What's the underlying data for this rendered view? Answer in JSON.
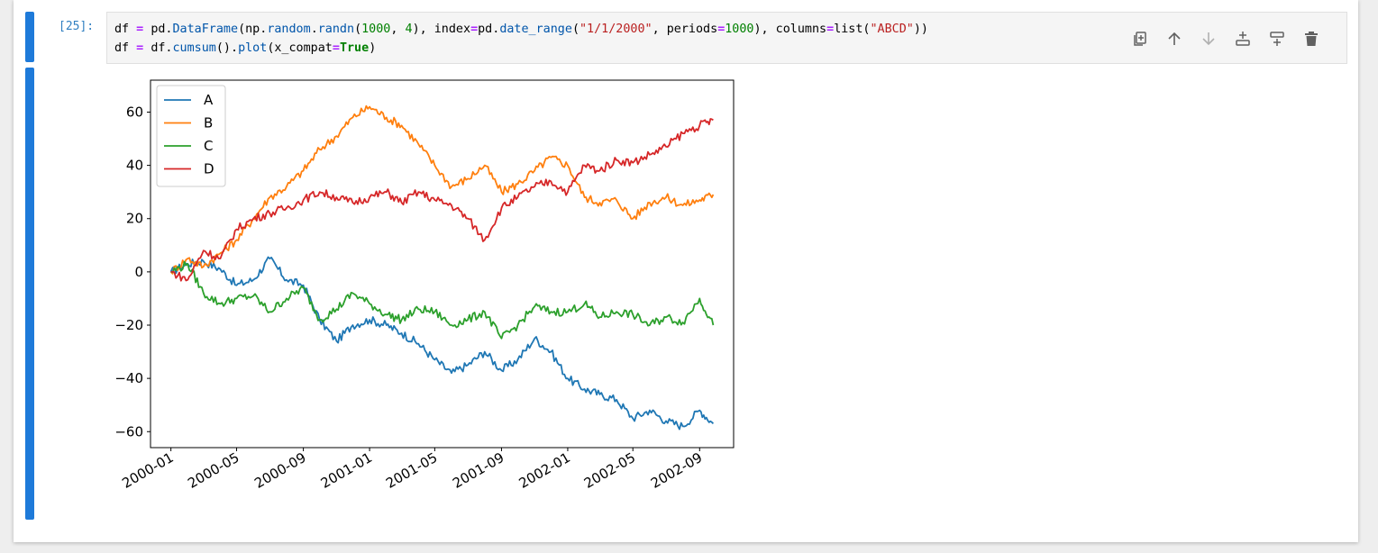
{
  "cell": {
    "prompt": "[25]:",
    "code_lines": [
      [
        {
          "t": "df",
          "c": "k-name"
        },
        {
          "t": " = ",
          "c": "k-eq"
        },
        {
          "t": "pd.",
          "c": "k-name"
        },
        {
          "t": "DataFrame",
          "c": "k-attr"
        },
        {
          "t": "(np.",
          "c": "k-name"
        },
        {
          "t": "random",
          "c": "k-attr"
        },
        {
          "t": ".",
          "c": "k-name"
        },
        {
          "t": "randn",
          "c": "k-attr"
        },
        {
          "t": "(",
          "c": "k-name"
        },
        {
          "t": "1000",
          "c": "k-num"
        },
        {
          "t": ", ",
          "c": "k-name"
        },
        {
          "t": "4",
          "c": "k-num"
        },
        {
          "t": "), index",
          "c": "k-name"
        },
        {
          "t": "=",
          "c": "k-eq"
        },
        {
          "t": "pd.",
          "c": "k-name"
        },
        {
          "t": "date_range",
          "c": "k-attr"
        },
        {
          "t": "(",
          "c": "k-name"
        },
        {
          "t": "\"1/1/2000\"",
          "c": "k-str"
        },
        {
          "t": ", periods",
          "c": "k-name"
        },
        {
          "t": "=",
          "c": "k-eq"
        },
        {
          "t": "1000",
          "c": "k-num"
        },
        {
          "t": "), columns",
          "c": "k-name"
        },
        {
          "t": "=",
          "c": "k-eq"
        },
        {
          "t": "list(",
          "c": "k-name"
        },
        {
          "t": "\"ABCD\"",
          "c": "k-str"
        },
        {
          "t": "))",
          "c": "k-name"
        }
      ],
      [
        {
          "t": "df",
          "c": "k-name"
        },
        {
          "t": " = ",
          "c": "k-eq"
        },
        {
          "t": "df.",
          "c": "k-name"
        },
        {
          "t": "cumsum",
          "c": "k-attr"
        },
        {
          "t": "().",
          "c": "k-name"
        },
        {
          "t": "plot",
          "c": "k-attr"
        },
        {
          "t": "(x_compat",
          "c": "k-name"
        },
        {
          "t": "=",
          "c": "k-eq"
        },
        {
          "t": "True",
          "c": "k-bool"
        },
        {
          "t": ")",
          "c": "k-name"
        }
      ]
    ]
  },
  "toolbar": {
    "icons": [
      "duplicate-icon",
      "move-up-icon",
      "move-down-icon",
      "insert-above-icon",
      "insert-below-icon",
      "delete-icon"
    ]
  },
  "chart_data": {
    "type": "line",
    "title": "",
    "xlabel": "",
    "ylabel": "",
    "x_range": [
      "2000-01-01",
      "2002-09-26"
    ],
    "ylim": [
      -66,
      72
    ],
    "yticks": [
      60,
      40,
      20,
      0,
      -20,
      -40,
      -60
    ],
    "xticks": [
      "2000-01",
      "2000-05",
      "2000-09",
      "2001-01",
      "2001-05",
      "2001-09",
      "2002-01",
      "2002-05",
      "2002-09"
    ],
    "legend": "top-left",
    "grid": false,
    "x": [
      "2000-01-01",
      "2000-02-01",
      "2000-03-01",
      "2000-04-01",
      "2000-05-01",
      "2000-06-01",
      "2000-07-01",
      "2000-08-01",
      "2000-09-01",
      "2000-10-01",
      "2000-11-01",
      "2000-12-01",
      "2001-01-01",
      "2001-02-01",
      "2001-03-01",
      "2001-04-01",
      "2001-05-01",
      "2001-06-01",
      "2001-07-01",
      "2001-08-01",
      "2001-09-01",
      "2001-10-01",
      "2001-11-01",
      "2001-12-01",
      "2002-01-01",
      "2002-02-01",
      "2002-03-01",
      "2002-04-01",
      "2002-05-01",
      "2002-06-01",
      "2002-07-01",
      "2002-08-01",
      "2002-09-01",
      "2002-09-26"
    ],
    "series": [
      {
        "name": "A",
        "color": "#1f77b4",
        "values": [
          0,
          3,
          4,
          1,
          -5,
          -3,
          5,
          -3,
          -5,
          -18,
          -26,
          -20,
          -18,
          -20,
          -23,
          -27,
          -33,
          -38,
          -35,
          -30,
          -37,
          -33,
          -25,
          -30,
          -40,
          -44,
          -46,
          -48,
          -55,
          -52,
          -56,
          -58,
          -52,
          -57
        ]
      },
      {
        "name": "B",
        "color": "#ff7f0e",
        "values": [
          0,
          5,
          2,
          7,
          12,
          20,
          28,
          32,
          38,
          46,
          51,
          58,
          62,
          58,
          55,
          48,
          40,
          32,
          35,
          40,
          30,
          33,
          38,
          43,
          40,
          28,
          26,
          27,
          20,
          26,
          28,
          25,
          27,
          29
        ]
      },
      {
        "name": "C",
        "color": "#2ca02c",
        "values": [
          0,
          3,
          -8,
          -12,
          -10,
          -9,
          -15,
          -10,
          -6,
          -18,
          -14,
          -8,
          -12,
          -16,
          -18,
          -14,
          -15,
          -20,
          -18,
          -15,
          -25,
          -20,
          -13,
          -15,
          -15,
          -12,
          -17,
          -15,
          -16,
          -20,
          -17,
          -19,
          -10,
          -20
        ]
      },
      {
        "name": "D",
        "color": "#d62728",
        "values": [
          0,
          -3,
          8,
          5,
          16,
          20,
          22,
          24,
          27,
          30,
          28,
          26,
          28,
          30,
          26,
          30,
          27,
          25,
          20,
          12,
          24,
          28,
          32,
          34,
          30,
          40,
          38,
          42,
          41,
          44,
          47,
          52,
          55,
          57
        ]
      }
    ]
  }
}
